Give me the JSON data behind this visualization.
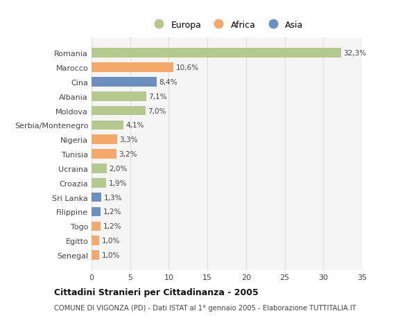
{
  "categories": [
    "Romania",
    "Marocco",
    "Cina",
    "Albania",
    "Moldova",
    "Serbia/Montenegro",
    "Nigeria",
    "Tunisia",
    "Ucraina",
    "Croazia",
    "Sri Lanka",
    "Filippine",
    "Togo",
    "Egitto",
    "Senegal"
  ],
  "values": [
    32.3,
    10.6,
    8.4,
    7.1,
    7.0,
    4.1,
    3.3,
    3.2,
    2.0,
    1.9,
    1.3,
    1.2,
    1.2,
    1.0,
    1.0
  ],
  "labels": [
    "32,3%",
    "10,6%",
    "8,4%",
    "7,1%",
    "7,0%",
    "4,1%",
    "3,3%",
    "3,2%",
    "2,0%",
    "1,9%",
    "1,3%",
    "1,2%",
    "1,2%",
    "1,0%",
    "1,0%"
  ],
  "colors": [
    "#b5c98e",
    "#f4a96a",
    "#6b8fbe",
    "#b5c98e",
    "#b5c98e",
    "#b5c98e",
    "#f4a96a",
    "#f4a96a",
    "#b5c98e",
    "#b5c98e",
    "#6b8fbe",
    "#6b8fbe",
    "#f4a96a",
    "#f4a96a",
    "#f4a96a"
  ],
  "legend_labels": [
    "Europa",
    "Africa",
    "Asia"
  ],
  "legend_colors": [
    "#b5c98e",
    "#f4a96a",
    "#6b8fbe"
  ],
  "title": "Cittadini Stranieri per Cittadinanza - 2005",
  "subtitle": "COMUNE DI VIGONZA (PD) - Dati ISTAT al 1° gennaio 2005 - Elaborazione TUTTITALIA.IT",
  "xlim": [
    0,
    35
  ],
  "xticks": [
    0,
    5,
    10,
    15,
    20,
    25,
    30,
    35
  ],
  "background_color": "#ffffff",
  "plot_background": "#f5f5f5",
  "grid_color": "#e0e0e0"
}
